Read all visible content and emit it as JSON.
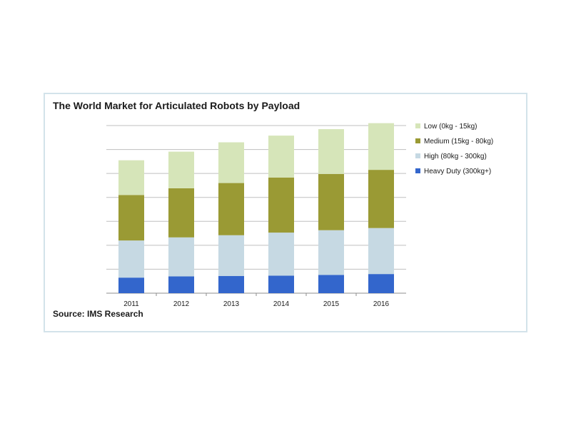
{
  "chart_data": {
    "type": "bar",
    "stacked": true,
    "title": "The World Market for Articulated Robots by Payload",
    "source": "Source: IMS Research",
    "categories": [
      "2011",
      "2012",
      "2013",
      "2014",
      "2015",
      "2016"
    ],
    "series": [
      {
        "name": "Heavy Duty (300kg+)",
        "color": "#3366cc",
        "values": [
          6.5,
          7,
          7.2,
          7.3,
          7.6,
          8
        ]
      },
      {
        "name": "High (80kg - 300kg)",
        "color": "#c6d9e3",
        "values": [
          15.5,
          16.3,
          17,
          18,
          18.7,
          19.2
        ]
      },
      {
        "name": "Medium (15kg - 80kg)",
        "color": "#9a9a34",
        "values": [
          19,
          20.5,
          21.8,
          23,
          23.5,
          24.3
        ]
      },
      {
        "name": "Low (0kg - 15kg)",
        "color": "#d6e5b9",
        "values": [
          14.5,
          15.3,
          17,
          17.5,
          18.7,
          19.5
        ]
      }
    ],
    "ylim": [
      0,
      70
    ],
    "ytick_step": 10,
    "y_tick_labels_shown": false,
    "grid": true,
    "legend_position": "right"
  }
}
